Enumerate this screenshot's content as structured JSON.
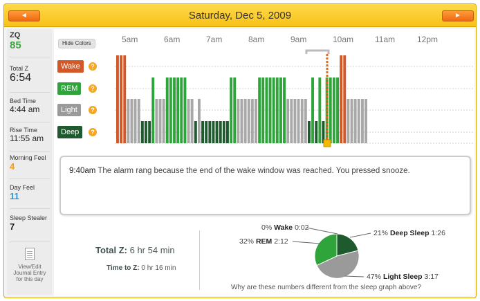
{
  "header": {
    "date": "Saturday, Dec 5, 2009",
    "prev_label": "◄",
    "next_label": "►"
  },
  "sidebar": {
    "zq_label": "ZQ",
    "zq_value": "85",
    "total_z_label": "Total Z",
    "total_z_value": "6:54",
    "bed_time_label": "Bed Time",
    "bed_time_value": "4:44 am",
    "rise_time_label": "Rise Time",
    "rise_time_value": "11:55 am",
    "morning_feel_label": "Morning Feel",
    "morning_feel_value": "4",
    "day_feel_label": "Day Feel",
    "day_feel_value": "11",
    "sleep_stealer_label": "Sleep Stealer",
    "sleep_stealer_value": "7",
    "journal_label": "View/Edit Journal Entry for this day"
  },
  "graph": {
    "hide_colors_label": "Hide Colors",
    "hours": [
      "5am",
      "6am",
      "7am",
      "8am",
      "9am",
      "10am",
      "11am",
      "12pm"
    ],
    "stages": [
      {
        "label": "Wake",
        "color": "#d2582a"
      },
      {
        "label": "REM",
        "color": "#2ea43a"
      },
      {
        "label": "Light",
        "color": "#9a9a9a"
      },
      {
        "label": "Deep",
        "color": "#1e5a2e"
      }
    ],
    "help_glyph": "?",
    "colors": {
      "wake": "#d2582a",
      "rem": "#2ea43a",
      "light": "#a8a8a8",
      "deep": "#1e5a2e",
      "alarm": "#e06a1a",
      "marker": "#f5b800"
    },
    "segments": [
      [
        "W",
        3
      ],
      [
        "L",
        4
      ],
      [
        "D",
        3
      ],
      [
        "R",
        1
      ],
      [
        "L",
        3
      ],
      [
        "R",
        6
      ],
      [
        "L",
        2
      ],
      [
        "D",
        1
      ],
      [
        "L",
        1
      ],
      [
        "D",
        8
      ],
      [
        "R",
        2
      ],
      [
        "L",
        6
      ],
      [
        "R",
        8
      ],
      [
        "L",
        6
      ],
      [
        "D",
        1
      ],
      [
        "R",
        1
      ],
      [
        "D",
        1
      ],
      [
        "R",
        1
      ],
      [
        "D",
        1
      ],
      [
        "R",
        4
      ],
      [
        "W",
        2
      ],
      [
        "L",
        6
      ]
    ],
    "alarm_time": "9:40am"
  },
  "message": {
    "time": "9:40am",
    "text": "The alarm rang because the end of the wake window was reached. You pressed snooze."
  },
  "summary": {
    "total_z_label": "Total Z:",
    "total_z_value": "6 hr 54 min",
    "time_to_z_label": "Time to Z:",
    "time_to_z_value": "0 hr 16 min"
  },
  "chart_data": {
    "type": "pie",
    "categories": [
      "Wake",
      "REM",
      "Light Sleep",
      "Deep Sleep"
    ],
    "values": [
      0,
      32,
      47,
      21
    ],
    "durations": [
      "0:02",
      "2:12",
      "3:17",
      "1:26"
    ],
    "colors": [
      "#d2582a",
      "#2ea43a",
      "#9a9a9a",
      "#1e5a2e"
    ],
    "labels": [
      {
        "pct": "0%",
        "name": "Wake",
        "dur": "0:02"
      },
      {
        "pct": "32%",
        "name": "REM",
        "dur": "2:12"
      },
      {
        "pct": "47%",
        "name": "Light Sleep",
        "dur": "3:17"
      },
      {
        "pct": "21%",
        "name": "Deep Sleep",
        "dur": "1:26"
      }
    ]
  },
  "why_link": "Why are these numbers different from the sleep graph above?"
}
